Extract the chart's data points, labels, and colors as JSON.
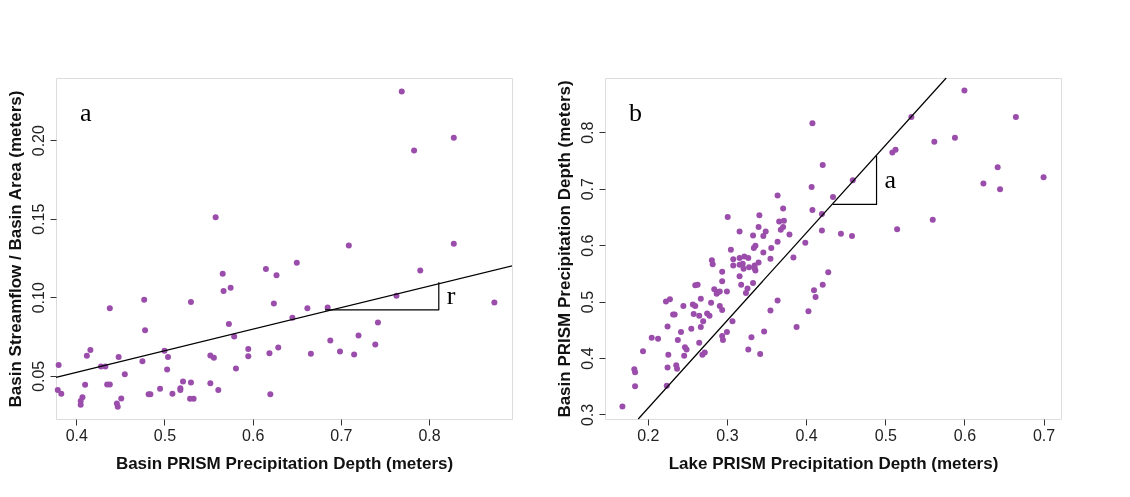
{
  "chart_data": [
    {
      "type": "scatter",
      "xlabel": "Basin PRISM Precipitation Depth (meters)",
      "ylabel": "Basin Streamflow / Basin Area (meters)",
      "xlim": [
        0.377,
        0.894
      ],
      "ylim": [
        0.0225,
        0.2396
      ],
      "xticks": [
        0.4,
        0.5,
        0.6,
        0.7,
        0.8
      ],
      "yticks": [
        0.05,
        {
          "value": 0.1,
          "label": "0.10"
        },
        0.15,
        {
          "value": 0.2,
          "label": "0.20"
        }
      ],
      "grid": false,
      "legend": false,
      "marker": "circle",
      "annotations": [
        "a",
        "r"
      ],
      "series": [
        {
          "color": "#9b4dab",
          "x": [
            0.769,
            0.828,
            0.783,
            0.558,
            0.709,
            0.828,
            0.65,
            0.79,
            0.615,
            0.566,
            0.627,
            0.567,
            0.575,
            0.763,
            0.477,
            0.53,
            0.874,
            0.438,
            0.624,
            0.662,
            0.685,
            0.645,
            0.742,
            0.573,
            0.478,
            0.579,
            0.72,
            0.688,
            0.739,
            0.416,
            0.595,
            0.629,
            0.5,
            0.699,
            0.619,
            0.666,
            0.715,
            0.412,
            0.448,
            0.504,
            0.552,
            0.556,
            0.595,
            0.38,
            0.475,
            0.428,
            0.433,
            0.581,
            0.503,
            0.455,
            0.41,
            0.435,
            0.438,
            0.521,
            0.53,
            0.552,
            0.495,
            0.518,
            0.518,
            0.561,
            0.379,
            0.383,
            0.482,
            0.484,
            0.509,
            0.62,
            0.407,
            0.451,
            0.405,
            0.405,
            0.446,
            0.447,
            0.529,
            0.533
          ],
          "values": [
            0.231,
            0.2016,
            0.1935,
            0.151,
            0.133,
            0.134,
            0.122,
            0.117,
            0.118,
            0.115,
            0.114,
            0.104,
            0.106,
            0.101,
            0.0985,
            0.097,
            0.0966,
            0.093,
            0.096,
            0.093,
            0.0935,
            0.087,
            0.084,
            0.083,
            0.079,
            0.075,
            0.0757,
            0.0725,
            0.07,
            0.0665,
            0.067,
            0.068,
            0.066,
            0.0655,
            0.0644,
            0.064,
            0.0636,
            0.0627,
            0.062,
            0.062,
            0.063,
            0.0615,
            0.0625,
            0.0568,
            0.0593,
            0.056,
            0.056,
            0.0547,
            0.054,
            0.051,
            0.0443,
            0.0445,
            0.0445,
            0.0464,
            0.0458,
            0.0453,
            0.0417,
            0.042,
            0.041,
            0.041,
            0.041,
            0.0386,
            0.0383,
            0.0383,
            0.0386,
            0.0383,
            0.0364,
            0.0356,
            0.034,
            0.0316,
            0.0324,
            0.0303,
            0.0354,
            0.0354
          ]
        },
        {
          "type": "line",
          "marker": "none",
          "color": "#000000",
          "x": [
            0.377,
            0.894
          ],
          "values": [
            0.049,
            0.12
          ]
        },
        {
          "type": "line",
          "marker": "none",
          "color": "#000000",
          "x": [
            0.682,
            0.811,
            0.811
          ],
          "values": [
            0.092,
            0.092,
            0.1096
          ]
        }
      ]
    },
    {
      "type": "scatter",
      "xlabel": "Lake PRISM Precipitation Depth (meters)",
      "ylabel": "Basin PRISM Precipitation Depth (meters)",
      "xlim": [
        0.146,
        0.722
      ],
      "ylim": [
        0.292,
        0.896
      ],
      "xticks": [
        0.2,
        0.3,
        0.4,
        0.5,
        0.6,
        0.7
      ],
      "yticks": [
        0.3,
        0.4,
        0.5,
        0.6,
        0.7,
        0.8
      ],
      "grid": false,
      "legend": false,
      "marker": "circle",
      "annotations": [
        "b",
        "a"
      ],
      "series": [
        {
          "color": "#9b4dab",
          "x": [
            0.168,
            0.184,
            0.184,
            0.183,
            0.194,
            0.224,
            0.225,
            0.236,
            0.237,
            0.226,
            0.205,
            0.213,
            0.225,
            0.238,
            0.242,
            0.247,
            0.249,
            0.246,
            0.255,
            0.265,
            0.269,
            0.272,
            0.223,
            0.228,
            0.232,
            0.234,
            0.245,
            0.257,
            0.26,
            0.258,
            0.265,
            0.267,
            0.27,
            0.267,
            0.275,
            0.278,
            0.28,
            0.26,
            0.263,
            0.284,
            0.287,
            0.289,
            0.291,
            0.291,
            0.294,
            0.294,
            0.294,
            0.281,
            0.282,
            0.3,
            0.307,
            0.3,
            0.294,
            0.295,
            0.301,
            0.305,
            0.308,
            0.308,
            0.316,
            0.318,
            0.324,
            0.326,
            0.316,
            0.316,
            0.322,
            0.327,
            0.316,
            0.32,
            0.321,
            0.328,
            0.335,
            0.336,
            0.335,
            0.34,
            0.333,
            0.333,
            0.334,
            0.336,
            0.341,
            0.34,
            0.346,
            0.349,
            0.346,
            0.355,
            0.356,
            0.364,
            0.364,
            0.366,
            0.372,
            0.368,
            0.371,
            0.371,
            0.379,
            0.384,
            0.399,
            0.408,
            0.407,
            0.408,
            0.421,
            0.42,
            0.42,
            0.434,
            0.444,
            0.458,
            0.459,
            0.509,
            0.513,
            0.533,
            0.515,
            0.56,
            0.562,
            0.588,
            0.6,
            0.624,
            0.642,
            0.645,
            0.665,
            0.7,
            0.428,
            0.421,
            0.41,
            0.412,
            0.403,
            0.364,
            0.355,
            0.388,
            0.347,
            0.331,
            0.327,
            0.342
          ],
          "values": [
            0.314,
            0.35,
            0.375,
            0.38,
            0.412,
            0.351,
            0.383,
            0.387,
            0.381,
            0.406,
            0.436,
            0.434,
            0.456,
            0.432,
            0.446,
            0.419,
            0.415,
            0.404,
            0.452,
            0.427,
            0.406,
            0.41,
            0.5,
            0.504,
            0.477,
            0.477,
            0.492,
            0.495,
            0.492,
            0.478,
            0.475,
            0.455,
            0.465,
            0.505,
            0.479,
            0.475,
            0.498,
            0.529,
            0.53,
            0.522,
            0.514,
            0.517,
            0.518,
            0.492,
            0.485,
            0.536,
            0.553,
            0.573,
            0.566,
            0.518,
            0.465,
            0.446,
            0.439,
            0.432,
            0.65,
            0.592,
            0.575,
            0.564,
            0.545,
            0.53,
            0.515,
            0.523,
            0.624,
            0.577,
            0.58,
            0.577,
            0.565,
            0.567,
            0.558,
            0.561,
            0.559,
            0.555,
            0.564,
            0.569,
            0.533,
            0.617,
            0.595,
            0.599,
            0.653,
            0.632,
            0.616,
            0.624,
            0.587,
            0.576,
            0.595,
            0.606,
            0.688,
            0.642,
            0.643,
            0.627,
            0.632,
            0.665,
            0.619,
            0.578,
            0.604,
            0.816,
            0.703,
            0.662,
            0.742,
            0.655,
            0.626,
            0.685,
            0.62,
            0.616,
            0.715,
            0.764,
            0.769,
            0.827,
            0.628,
            0.645,
            0.783,
            0.79,
            0.874,
            0.709,
            0.738,
            0.699,
            0.827,
            0.72,
            0.552,
            0.53,
            0.52,
            0.508,
            0.483,
            0.502,
            0.484,
            0.455,
            0.447,
            0.437,
            0.415,
            0.407
          ]
        },
        {
          "type": "line",
          "marker": "none",
          "color": "#000000",
          "x": [
            0.188,
            0.577
          ],
          "values": [
            0.292,
            0.896
          ]
        },
        {
          "type": "line",
          "marker": "none",
          "color": "#000000",
          "x": [
            0.434,
            0.489,
            0.489
          ],
          "values": [
            0.672,
            0.672,
            0.758
          ]
        }
      ]
    }
  ]
}
